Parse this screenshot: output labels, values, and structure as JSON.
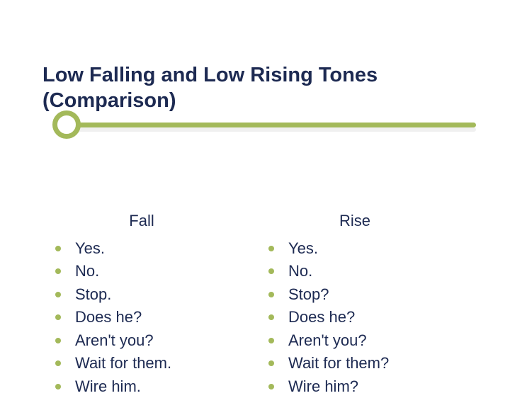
{
  "title_line1": "Low Falling and Low Rising Tones",
  "title_line2": "(Comparison)",
  "accent_color": "#a3b95a",
  "text_color": "#1d2a52",
  "left": {
    "header": "Fall",
    "items": [
      "Yes.",
      "No.",
      "Stop.",
      "Does he?",
      "Aren't you?",
      "Wait for them.",
      "Wire him."
    ]
  },
  "right": {
    "header": "Rise",
    "items": [
      "Yes.",
      "No.",
      "Stop?",
      "Does he?",
      "Aren't you?",
      "Wait for them?",
      "Wire him?"
    ]
  }
}
